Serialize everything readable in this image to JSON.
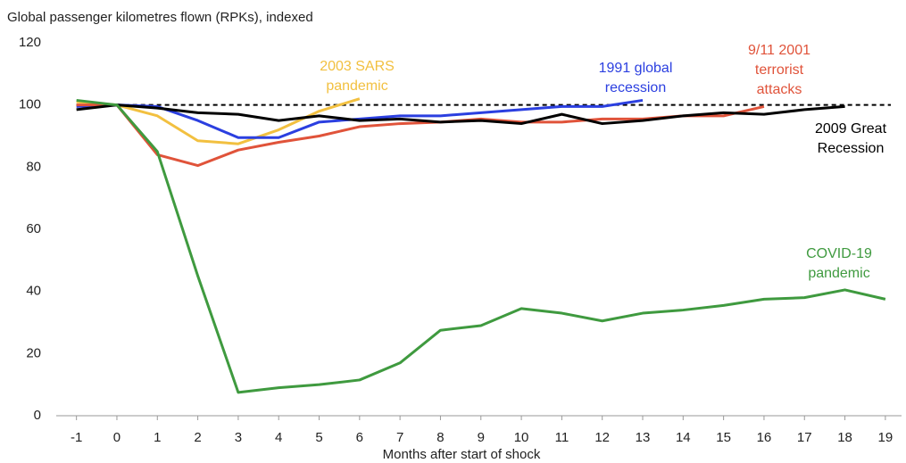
{
  "chart_data": {
    "type": "line",
    "title": "Global passenger kilometres flown (RPKs), indexed",
    "x_label": "Months after start of shock",
    "xlim": [
      -1.5,
      19.4
    ],
    "xticks": [
      -1,
      0,
      1,
      2,
      3,
      4,
      5,
      6,
      7,
      8,
      9,
      10,
      11,
      12,
      13,
      14,
      15,
      16,
      17,
      18,
      19
    ],
    "ylim": [
      0,
      120
    ],
    "yticks": [
      0,
      20,
      40,
      60,
      80,
      100,
      120
    ],
    "reference_line": 100,
    "series": [
      {
        "label": [
          "2003 SARS",
          "pandemic"
        ],
        "color": "#f2c040",
        "x": [
          -1,
          0,
          1,
          2,
          3,
          4,
          5,
          6
        ],
        "values": [
          101,
          100,
          96.5,
          88.5,
          87.5,
          92,
          98,
          102
        ]
      },
      {
        "label": [
          "1991 global",
          "recession"
        ],
        "color": "#2b3fe0",
        "x": [
          -1,
          0,
          1,
          2,
          3,
          4,
          5,
          6,
          7,
          8,
          9,
          10,
          11,
          12,
          13
        ],
        "values": [
          99.5,
          100,
          99.5,
          95,
          89.5,
          89.5,
          94.5,
          95.5,
          96.5,
          96.5,
          97.5,
          98.5,
          99.5,
          99.5,
          101.5
        ]
      },
      {
        "label": [
          "9/11 2001",
          "terrorist",
          "attacks"
        ],
        "color": "#e0533a",
        "x": [
          -1,
          0,
          1,
          2,
          3,
          4,
          5,
          6,
          7,
          8,
          9,
          10,
          11,
          12,
          13,
          14,
          15,
          16
        ],
        "values": [
          100,
          100,
          84,
          80.5,
          85.5,
          88,
          90,
          93,
          94,
          94.5,
          95.5,
          94.5,
          94.5,
          95.5,
          95.5,
          96.5,
          96.5,
          99.5
        ]
      },
      {
        "label": [
          "2009 Great",
          "Recession"
        ],
        "color": "#000000",
        "x": [
          -1,
          0,
          1,
          2,
          3,
          4,
          5,
          6,
          7,
          8,
          9,
          10,
          11,
          12,
          13,
          14,
          15,
          16,
          17,
          18
        ],
        "values": [
          98.5,
          100,
          99,
          97.5,
          97,
          95,
          96.5,
          95,
          95.5,
          94.5,
          95,
          94,
          97,
          94,
          95,
          96.5,
          97.5,
          97,
          98.5,
          99.5
        ]
      },
      {
        "label": [
          "COVID-19",
          "pandemic"
        ],
        "color": "#3f9a3f",
        "x": [
          -1,
          0,
          1,
          2,
          3,
          4,
          5,
          6,
          7,
          8,
          9,
          10,
          11,
          12,
          13,
          14,
          15,
          16,
          17,
          18,
          19
        ],
        "values": [
          101.5,
          100,
          85,
          45,
          7.5,
          9,
          10,
          11.5,
          17,
          27.5,
          29,
          34.5,
          33,
          30.5,
          33,
          34,
          35.5,
          37.5,
          38,
          40.5,
          37.5
        ]
      }
    ]
  }
}
